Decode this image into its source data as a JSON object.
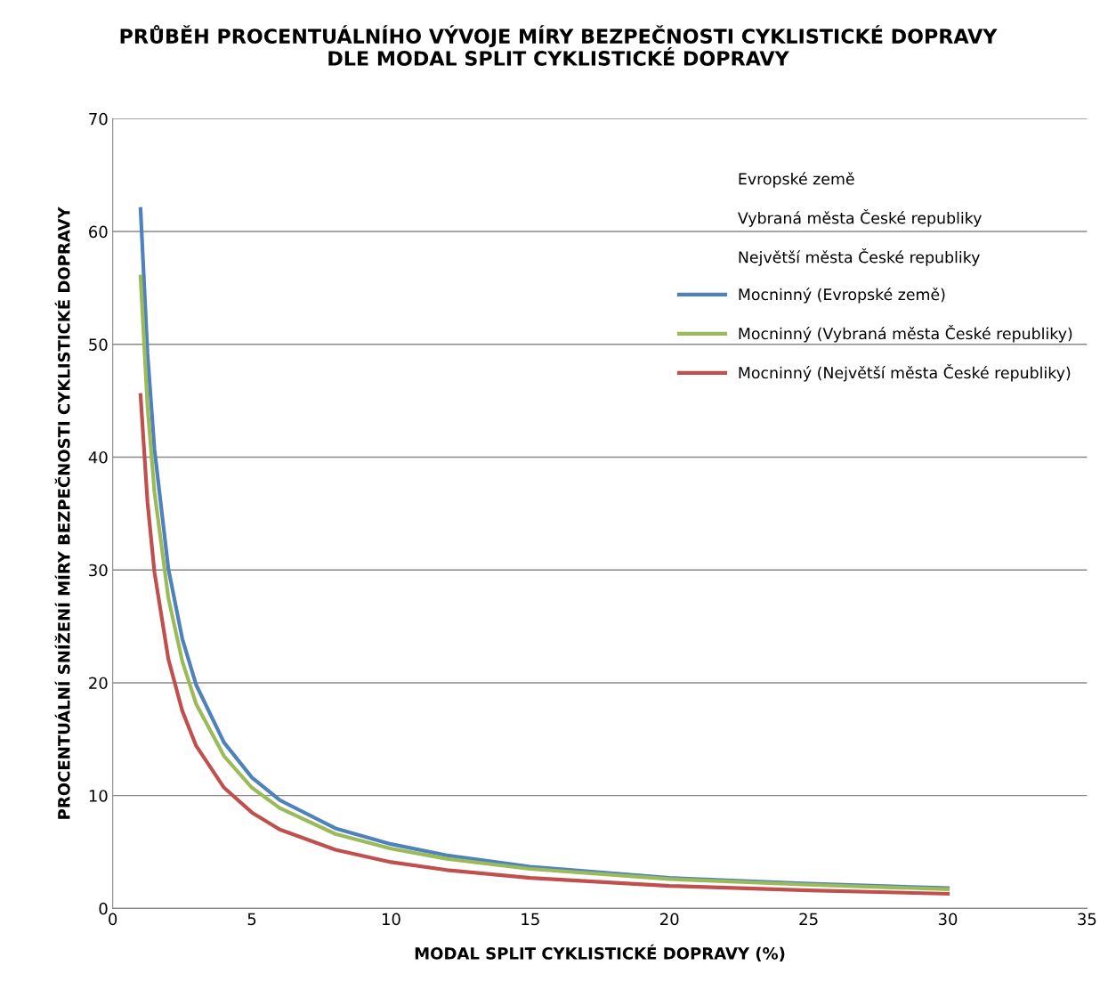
{
  "chart_data": {
    "type": "line",
    "title": "PRŮBĚH PROCENTUÁLNÍHO VÝVOJE MÍRY BEZPEČNOSTI CYKLISTICKÉ DOPRAVY\nDLE MODAL SPLIT CYKLISTICKÉ DOPRAVY",
    "xlabel": "MODAL SPLIT CYKLISTICKÉ DOPRAVY (%)",
    "ylabel": "PROCENTUÁLNÍ SNÍŽENÍ MÍRY BEZPEČNOSTI CYKLISTICKÉ DOPRAVY",
    "x": [
      1,
      1.25,
      1.5,
      2,
      2.5,
      3,
      4,
      5,
      6,
      8,
      10,
      12,
      15,
      20,
      25,
      30
    ],
    "series": [
      {
        "name": "Mocninný (Evropské země)",
        "color": "#4f81bd",
        "values": [
          62,
          49.2,
          40.7,
          30.1,
          23.9,
          19.8,
          14.7,
          11.6,
          9.6,
          7.1,
          5.7,
          4.7,
          3.7,
          2.7,
          2.2,
          1.8
        ]
      },
      {
        "name": "Mocninný (Vybraná města České republiky)",
        "color": "#9bbb59",
        "values": [
          56,
          44.5,
          36.9,
          27.5,
          21.9,
          18.1,
          13.5,
          10.7,
          8.9,
          6.6,
          5.3,
          4.4,
          3.5,
          2.6,
          2.1,
          1.7
        ]
      },
      {
        "name": "Mocninný (Největší města České republiky)",
        "color": "#c0504d",
        "values": [
          45.5,
          36.0,
          29.8,
          22.1,
          17.5,
          14.4,
          10.7,
          8.5,
          7.0,
          5.2,
          4.1,
          3.4,
          2.7,
          2.0,
          1.6,
          1.3
        ]
      }
    ],
    "annotations": [
      "Evropské země",
      "Vybraná města České republiky",
      "Největší města České republiky"
    ],
    "xlim": [
      0,
      35
    ],
    "xticks": [
      0,
      5,
      10,
      15,
      20,
      25,
      30,
      35
    ],
    "ylim": [
      0,
      70
    ],
    "yticks": [
      0,
      10,
      20,
      30,
      40,
      50,
      60,
      70
    ],
    "grid": "y",
    "legend": "top right",
    "marker": "none",
    "line_style": "solid"
  }
}
